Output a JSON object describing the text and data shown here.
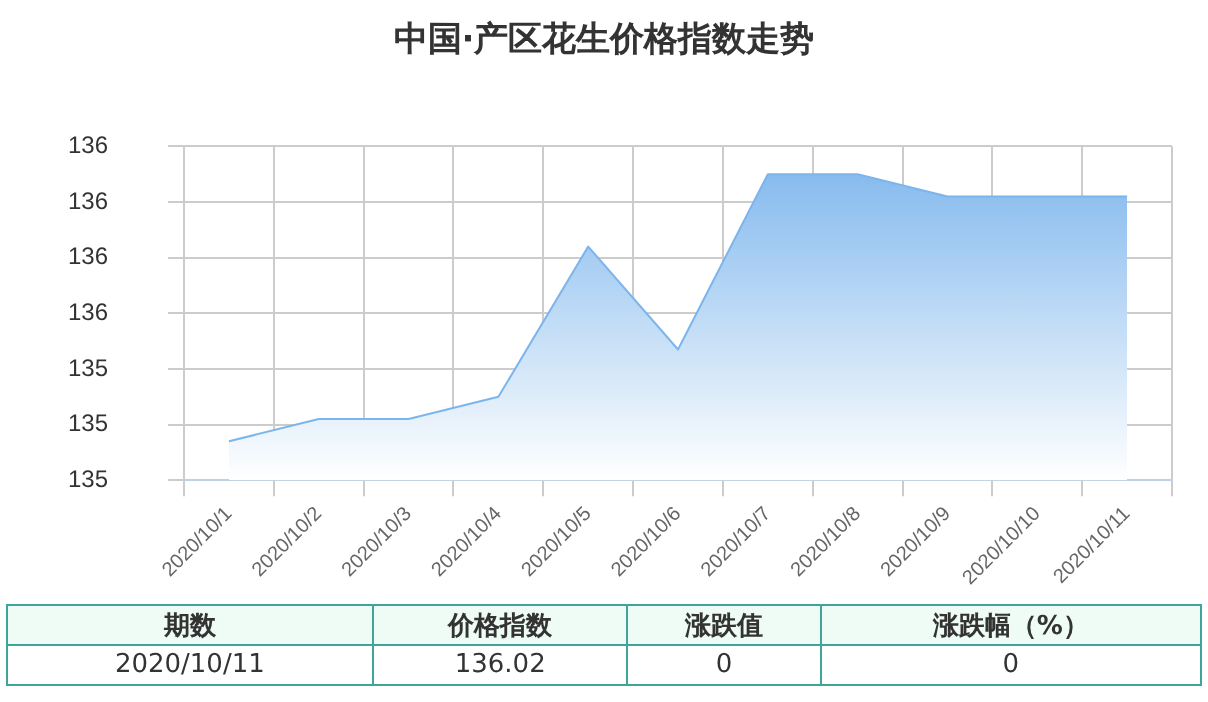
{
  "chart_data": {
    "type": "area",
    "title": "中国·产区花生价格指数走势",
    "categories": [
      "2020/10/1",
      "2020/10/2",
      "2020/10/3",
      "2020/10/4",
      "2020/10/5",
      "2020/10/6",
      "2020/10/7",
      "2020/10/8",
      "2020/10/9",
      "2020/10/10",
      "2020/10/11"
    ],
    "series": [
      {
        "color": "#7cb5ec",
        "values": [
          135.14,
          135.22,
          135.22,
          135.3,
          135.84,
          135.47,
          136.1,
          136.1,
          136.02,
          136.02,
          136.02
        ]
      }
    ],
    "ylim": [
      135.0,
      136.2
    ],
    "yticks": [
      {
        "value": 135.0,
        "label": "135"
      },
      {
        "value": 135.2,
        "label": "135"
      },
      {
        "value": 135.4,
        "label": "135"
      },
      {
        "value": 135.6,
        "label": "136"
      },
      {
        "value": 135.8,
        "label": "136"
      },
      {
        "value": 136.0,
        "label": "136"
      },
      {
        "value": 136.2,
        "label": "136"
      }
    ],
    "grid": true,
    "legend": false,
    "marker": "none",
    "annotations": [
      "期数",
      "价格指数",
      "涨跌值",
      "涨跌幅（%）",
      "2020/10/11",
      "136.02",
      "0",
      "0"
    ]
  }
}
